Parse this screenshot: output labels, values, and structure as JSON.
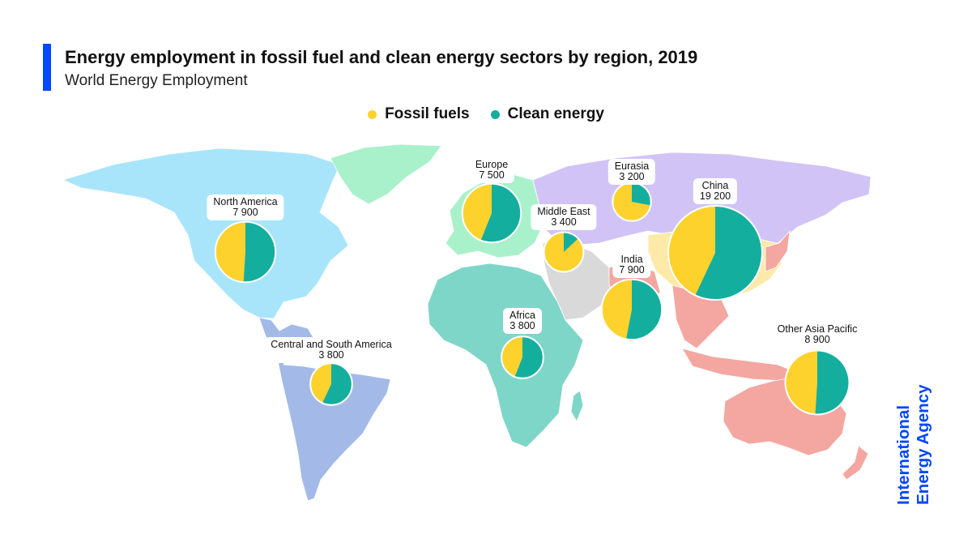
{
  "title": "Energy employment in fossil fuel and clean energy sectors by region, 2019",
  "subtitle": "World Energy Employment",
  "legend": {
    "fossil": "Fossil fuels",
    "clean": "Clean energy"
  },
  "colors": {
    "fossil": "#FDD22D",
    "clean": "#14AE9F",
    "accent": "#0047FF",
    "north_america": "#A8E5FB",
    "greenland": "#A9F1CB",
    "europe": "#A9F1CB",
    "eurasia": "#D2C3F6",
    "middle_east": "#D9D9D9",
    "africa": "#7ED6C8",
    "central_south_america": "#A3BAE8",
    "china": "#FDE9A8",
    "india": "#F4A6A1",
    "asia_pacific": "#F4A6A1"
  },
  "logo": {
    "line1": "International",
    "line2": "Energy Agency"
  },
  "chart_data": {
    "type": "pie",
    "title": "Energy employment in fossil fuel and clean energy sectors by region, 2019",
    "subtitle": "World Energy Employment",
    "series_names": [
      "Fossil fuels",
      "Clean energy"
    ],
    "regions": [
      {
        "name": "North America",
        "total_label": "7 900",
        "total": 7900,
        "fossil_share": 0.49,
        "clean_share": 0.51
      },
      {
        "name": "Europe",
        "total_label": "7 500",
        "total": 7500,
        "fossil_share": 0.44,
        "clean_share": 0.56
      },
      {
        "name": "Eurasia",
        "total_label": "3 200",
        "total": 3200,
        "fossil_share": 0.72,
        "clean_share": 0.28
      },
      {
        "name": "Middle East",
        "total_label": "3 400",
        "total": 3400,
        "fossil_share": 0.87,
        "clean_share": 0.13
      },
      {
        "name": "China",
        "total_label": "19 200",
        "total": 19200,
        "fossil_share": 0.43,
        "clean_share": 0.57
      },
      {
        "name": "India",
        "total_label": "7 900",
        "total": 7900,
        "fossil_share": 0.47,
        "clean_share": 0.53
      },
      {
        "name": "Africa",
        "total_label": "3 800",
        "total": 3800,
        "fossil_share": 0.44,
        "clean_share": 0.56
      },
      {
        "name": "Central and South America",
        "total_label": "3 800",
        "total": 3800,
        "fossil_share": 0.43,
        "clean_share": 0.57
      },
      {
        "name": "Other Asia Pacific",
        "total_label": "8 900",
        "total": 8900,
        "fossil_share": 0.49,
        "clean_share": 0.51
      }
    ]
  }
}
